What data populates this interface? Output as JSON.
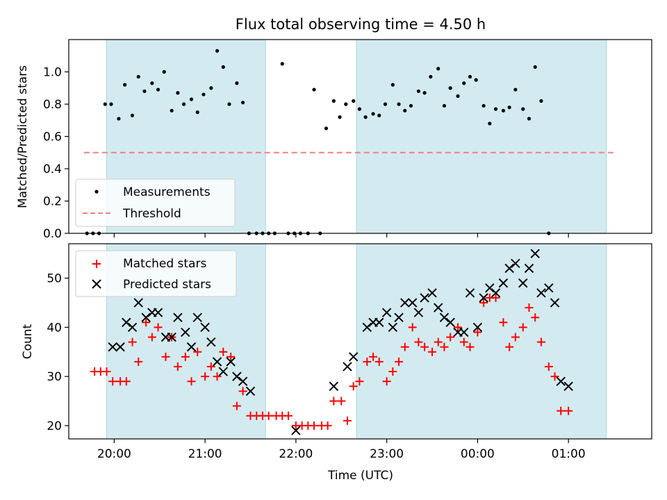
{
  "chart_data": [
    {
      "type": "scatter",
      "title": "Flux total observing time = 4.50 h",
      "xlabel": "",
      "ylabel": "Matched/Predicted stars",
      "xlim": [
        "19:30",
        "01:55"
      ],
      "ylim": [
        0,
        1.2
      ],
      "yticks": [
        "0.0",
        "0.2",
        "0.4",
        "0.6",
        "0.8",
        "1.0"
      ],
      "shaded_intervals": [
        [
          "19:55",
          "21:40"
        ],
        [
          "22:40",
          "01:25"
        ]
      ],
      "legend": {
        "placement": "lower-left",
        "entries": [
          "Measurements",
          "Threshold"
        ]
      },
      "threshold": {
        "name": "Threshold",
        "value": 0.5,
        "x_range": [
          "19:40",
          "01:30"
        ],
        "color": "#f08080",
        "style": "dashed"
      },
      "series": [
        {
          "name": "Measurements",
          "marker": "dot",
          "color": "#000000",
          "points": [
            [
              "19:42",
              0.0
            ],
            [
              "19:46",
              0.0
            ],
            [
              "19:50",
              0.0
            ],
            [
              "19:54",
              0.8
            ],
            [
              "19:58",
              0.8
            ],
            [
              "20:03",
              0.71
            ],
            [
              "20:07",
              0.92
            ],
            [
              "20:12",
              0.73
            ],
            [
              "20:16",
              0.97
            ],
            [
              "20:20",
              0.88
            ],
            [
              "20:25",
              0.93
            ],
            [
              "20:29",
              0.89
            ],
            [
              "20:33",
              1.0
            ],
            [
              "20:38",
              0.76
            ],
            [
              "20:42",
              0.87
            ],
            [
              "20:46",
              0.8
            ],
            [
              "20:51",
              0.83
            ],
            [
              "20:55",
              0.75
            ],
            [
              "20:59",
              0.86
            ],
            [
              "21:04",
              0.9
            ],
            [
              "21:08",
              1.13
            ],
            [
              "21:12",
              1.03
            ],
            [
              "21:16",
              0.8
            ],
            [
              "21:21",
              0.93
            ],
            [
              "21:25",
              0.81
            ],
            [
              "21:29",
              0.0
            ],
            [
              "21:34",
              0.0
            ],
            [
              "21:38",
              0.0
            ],
            [
              "21:42",
              0.0
            ],
            [
              "21:46",
              0.0
            ],
            [
              "21:51",
              1.05
            ],
            [
              "21:55",
              0.0
            ],
            [
              "21:59",
              0.0
            ],
            [
              "22:03",
              0.0
            ],
            [
              "22:08",
              0.0
            ],
            [
              "22:12",
              0.89
            ],
            [
              "22:16",
              0.0
            ],
            [
              "22:20",
              0.65
            ],
            [
              "22:25",
              0.82
            ],
            [
              "22:29",
              0.72
            ],
            [
              "22:33",
              0.8
            ],
            [
              "22:38",
              0.82
            ],
            [
              "22:42",
              0.77
            ],
            [
              "22:46",
              0.72
            ],
            [
              "22:51",
              0.74
            ],
            [
              "22:55",
              0.73
            ],
            [
              "22:59",
              0.8
            ],
            [
              "23:04",
              0.92
            ],
            [
              "23:08",
              0.8
            ],
            [
              "23:12",
              0.76
            ],
            [
              "23:16",
              0.79
            ],
            [
              "23:21",
              0.88
            ],
            [
              "23:25",
              0.87
            ],
            [
              "23:29",
              0.97
            ],
            [
              "23:34",
              1.02
            ],
            [
              "23:38",
              0.79
            ],
            [
              "23:42",
              0.9
            ],
            [
              "23:47",
              0.85
            ],
            [
              "23:51",
              0.93
            ],
            [
              "23:55",
              0.97
            ],
            [
              "23:59",
              0.95
            ],
            [
              "00:04",
              0.79
            ],
            [
              "00:08",
              0.68
            ],
            [
              "00:12",
              0.77
            ],
            [
              "00:17",
              0.76
            ],
            [
              "00:21",
              0.78
            ],
            [
              "00:25",
              0.89
            ],
            [
              "00:30",
              0.77
            ],
            [
              "00:34",
              0.71
            ],
            [
              "00:38",
              1.03
            ],
            [
              "00:42",
              0.82
            ],
            [
              "00:47",
              0.0
            ]
          ]
        }
      ]
    },
    {
      "type": "scatter",
      "title": "",
      "xlabel": "Time (UTC)",
      "ylabel": "Count",
      "xlim": [
        "19:30",
        "01:55"
      ],
      "ylim": [
        17.3,
        57
      ],
      "yticks": [
        "20",
        "30",
        "40",
        "50"
      ],
      "xticks": [
        "20:00",
        "21:00",
        "22:00",
        "23:00",
        "00:00",
        "01:00"
      ],
      "shaded_intervals": [
        [
          "19:55",
          "21:40"
        ],
        [
          "22:40",
          "01:25"
        ]
      ],
      "legend": {
        "placement": "upper-left",
        "entries": [
          "Matched stars",
          "Predicted stars"
        ]
      },
      "series": [
        {
          "name": "Matched stars",
          "marker": "plus",
          "color": "#ff0000",
          "points": [
            [
              "19:47",
              31
            ],
            [
              "19:51",
              31
            ],
            [
              "19:55",
              31
            ],
            [
              "19:59",
              29
            ],
            [
              "20:04",
              29
            ],
            [
              "20:08",
              29
            ],
            [
              "20:12",
              37
            ],
            [
              "20:16",
              33
            ],
            [
              "20:21",
              41
            ],
            [
              "20:25",
              38
            ],
            [
              "20:29",
              40
            ],
            [
              "20:34",
              34
            ],
            [
              "20:38",
              38
            ],
            [
              "20:42",
              32
            ],
            [
              "20:47",
              34
            ],
            [
              "20:51",
              29
            ],
            [
              "20:55",
              35
            ],
            [
              "21:00",
              30
            ],
            [
              "21:04",
              32
            ],
            [
              "21:08",
              30
            ],
            [
              "21:12",
              35
            ],
            [
              "21:17",
              34
            ],
            [
              "21:21",
              24
            ],
            [
              "21:25",
              27
            ],
            [
              "21:30",
              22
            ],
            [
              "21:34",
              22
            ],
            [
              "21:38",
              22
            ],
            [
              "21:42",
              22
            ],
            [
              "21:47",
              22
            ],
            [
              "21:51",
              22
            ],
            [
              "21:55",
              22
            ],
            [
              "22:00",
              20
            ],
            [
              "22:04",
              20
            ],
            [
              "22:08",
              20
            ],
            [
              "22:12",
              20
            ],
            [
              "22:17",
              20
            ],
            [
              "22:21",
              20
            ],
            [
              "22:25",
              25
            ],
            [
              "22:30",
              25
            ],
            [
              "22:34",
              21
            ],
            [
              "22:38",
              28
            ],
            [
              "22:42",
              29
            ],
            [
              "22:47",
              33
            ],
            [
              "22:51",
              34
            ],
            [
              "22:55",
              33
            ],
            [
              "23:00",
              29
            ],
            [
              "23:04",
              31
            ],
            [
              "23:08",
              33
            ],
            [
              "23:12",
              36
            ],
            [
              "23:17",
              40
            ],
            [
              "23:21",
              37
            ],
            [
              "23:25",
              36
            ],
            [
              "23:30",
              35
            ],
            [
              "23:34",
              37
            ],
            [
              "23:38",
              36
            ],
            [
              "23:42",
              38
            ],
            [
              "23:47",
              40
            ],
            [
              "23:51",
              37
            ],
            [
              "23:55",
              36
            ],
            [
              "00:00",
              39
            ],
            [
              "00:04",
              45
            ],
            [
              "00:08",
              46
            ],
            [
              "00:12",
              46
            ],
            [
              "00:17",
              41
            ],
            [
              "00:21",
              36
            ],
            [
              "00:25",
              38
            ],
            [
              "00:30",
              40
            ],
            [
              "00:34",
              44
            ],
            [
              "00:38",
              42
            ],
            [
              "00:42",
              37
            ],
            [
              "00:47",
              32
            ],
            [
              "00:51",
              30
            ],
            [
              "00:55",
              23
            ],
            [
              "01:00",
              23
            ]
          ]
        },
        {
          "name": "Predicted stars",
          "marker": "x",
          "color": "#000000",
          "points": [
            [
              "19:59",
              36
            ],
            [
              "20:04",
              36
            ],
            [
              "20:08",
              41
            ],
            [
              "20:12",
              40
            ],
            [
              "20:16",
              45
            ],
            [
              "20:21",
              42
            ],
            [
              "20:25",
              43
            ],
            [
              "20:29",
              43
            ],
            [
              "20:34",
              38
            ],
            [
              "20:38",
              38
            ],
            [
              "20:42",
              42
            ],
            [
              "20:47",
              39
            ],
            [
              "20:51",
              36
            ],
            [
              "20:55",
              42
            ],
            [
              "21:00",
              40
            ],
            [
              "21:04",
              37
            ],
            [
              "21:08",
              33
            ],
            [
              "21:12",
              31
            ],
            [
              "21:17",
              33
            ],
            [
              "21:21",
              30
            ],
            [
              "21:25",
              29
            ],
            [
              "21:30",
              27
            ],
            [
              "22:00",
              19
            ],
            [
              "22:25",
              28
            ],
            [
              "22:34",
              32
            ],
            [
              "22:38",
              34
            ],
            [
              "22:47",
              40
            ],
            [
              "22:51",
              41
            ],
            [
              "22:55",
              41
            ],
            [
              "23:00",
              43
            ],
            [
              "23:04",
              40
            ],
            [
              "23:08",
              42
            ],
            [
              "23:12",
              45
            ],
            [
              "23:17",
              45
            ],
            [
              "23:21",
              43
            ],
            [
              "23:25",
              46
            ],
            [
              "23:30",
              47
            ],
            [
              "23:34",
              44
            ],
            [
              "23:38",
              42
            ],
            [
              "23:42",
              41
            ],
            [
              "23:47",
              39
            ],
            [
              "23:51",
              39
            ],
            [
              "23:55",
              47
            ],
            [
              "00:00",
              40
            ],
            [
              "00:04",
              46
            ],
            [
              "00:08",
              48
            ],
            [
              "00:12",
              47
            ],
            [
              "00:17",
              49
            ],
            [
              "00:21",
              52
            ],
            [
              "00:25",
              53
            ],
            [
              "00:30",
              49
            ],
            [
              "00:34",
              52
            ],
            [
              "00:38",
              55
            ],
            [
              "00:42",
              47
            ],
            [
              "00:47",
              48
            ],
            [
              "00:51",
              45
            ],
            [
              "00:55",
              29
            ],
            [
              "01:00",
              28
            ]
          ]
        }
      ]
    }
  ],
  "colors": {
    "shade": "#d3ebf0",
    "shade_edge": "#a9d7e2",
    "threshold": "#f08080",
    "matched": "#ff0000",
    "predicted": "#000000"
  }
}
